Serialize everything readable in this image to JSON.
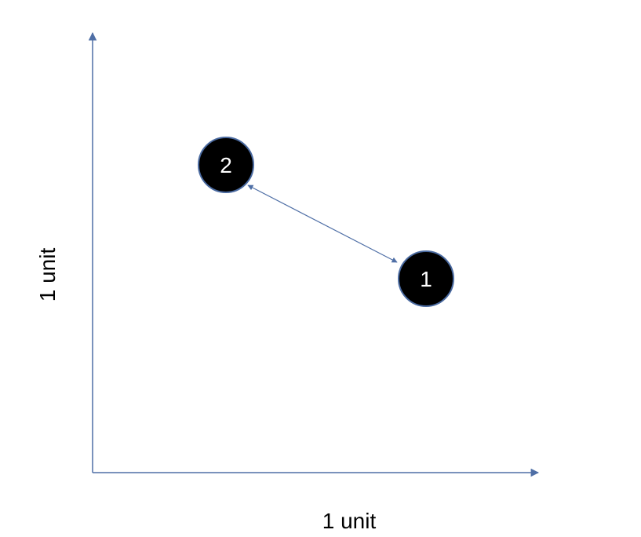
{
  "diagram": {
    "x_axis_label": "1 unit",
    "y_axis_label": "1 unit",
    "nodes": [
      {
        "label": "1"
      },
      {
        "label": "2"
      }
    ],
    "colors": {
      "axis": "#4f6fa6",
      "arrow": "#4f6fa6",
      "node_fill": "#000000",
      "node_stroke": "#4a6aa0",
      "node_text": "#ffffff"
    }
  }
}
